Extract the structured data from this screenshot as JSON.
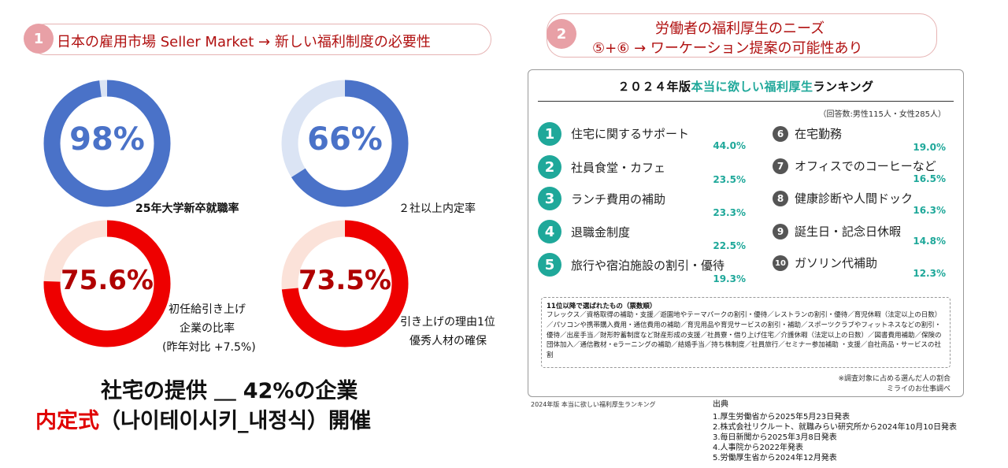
{
  "section1": {
    "number": "1",
    "title": "日本の雇用市場 Seller Market → 新しい福利制度の必要性"
  },
  "section2": {
    "number": "2",
    "title_line1": "労働者の福利厚生のニーズ",
    "title_line2": "⑤+⑥ → ワーケーション提案の可能性あり"
  },
  "chart_data": [
    {
      "type": "pie",
      "name": "donut-1",
      "value_pct": 98,
      "label": "98%",
      "caption": "25年大学新卒就職率",
      "fill_color": "#4a72c8",
      "rest_color": "#dbe4f4"
    },
    {
      "type": "pie",
      "name": "donut-2",
      "value_pct": 66,
      "label": "66%",
      "caption": "２社以上内定率",
      "fill_color": "#4a72c8",
      "rest_color": "#dbe4f4"
    },
    {
      "type": "pie",
      "name": "donut-3",
      "value_pct": 75.6,
      "label": "75.6%",
      "caption_lines": [
        "初任給引き上げ",
        "企業の比率",
        "(昨年対比 +7.5%)"
      ],
      "fill_color": "#ee0000",
      "rest_color": "#fbe2d9"
    },
    {
      "type": "pie",
      "name": "donut-4",
      "value_pct": 73.5,
      "label": "73.5%",
      "caption_lines": [
        "引き上げの理由1位",
        "優秀人材の確保"
      ],
      "fill_color": "#ee0000",
      "rest_color": "#fbe2d9"
    }
  ],
  "bottom": {
    "line1": "社宅の提供 ＿ 42%の企業",
    "line2_red": "内定式",
    "line2_rest": "（나이테이시키_내정식）開催"
  },
  "ranking": {
    "title_pre": "２０２４年版",
    "title_accent": "本当に欲しい福利厚生",
    "title_post": "ランキング",
    "respondents": "（回答数:男性115人・女性285人）",
    "top5": [
      {
        "rank": "1",
        "label": "住宅に関するサポート",
        "pct": "44.0%"
      },
      {
        "rank": "2",
        "label": "社員食堂・カフェ",
        "pct": "23.5%"
      },
      {
        "rank": "3",
        "label": "ランチ費用の補助",
        "pct": "23.3%"
      },
      {
        "rank": "4",
        "label": "退職金制度",
        "pct": "22.5%"
      },
      {
        "rank": "5",
        "label": "旅行や宿泊施設の割引・優待",
        "pct": "19.3%"
      }
    ],
    "next5": [
      {
        "rank": "6",
        "label": "在宅勤務",
        "pct": "19.0%"
      },
      {
        "rank": "7",
        "label": "オフィスでのコーヒーなど",
        "pct": "16.5%"
      },
      {
        "rank": "8",
        "label": "健康診断や人間ドック",
        "pct": "16.3%"
      },
      {
        "rank": "9",
        "label": "誕生日・記念日休暇",
        "pct": "14.8%"
      },
      {
        "rank": "10",
        "label": "ガソリン代補助",
        "pct": "12.3%"
      }
    ],
    "others_title": "11位以降で選ばれたもの（票数順）",
    "others_text": "フレックス／資格取得の補助・支援／遊園地やテーマパークの割引・優待／レストランの割引・優待／育児休暇（法定以上の日数）／パソコンや携帯購入費用・通信費用の補助／育児用品や育児サービスの割引・補助／スポーツクラブやフィットネスなどの割引・優待／出産手当／財形貯蓄制度など財産形成の支援／社員寮・借り上げ住宅／介護休暇（法定以上の日数）／図書費用補助／保険の団体加入／通信教材・eラーニングの補助／結婚手当／持ち株制度／社員旅行／セミナー参加補助 ・支援／自社商品・サービスの社割",
    "note1": "※調査対象に占める選んだ人の割合",
    "note2": "ミライのお仕事調べ"
  },
  "caption": "2024年版 本当に欲しい福利厚生ランキング",
  "sources": {
    "title": "出典",
    "items": [
      "1.厚生労働省から2025年5月23日発表",
      "2.株式会社リクルート、就職みらい研究所から2024年10月10日発表",
      "3.毎日新聞から2025年3月8日発表",
      "4.人事院から2022年発表",
      "5.労働厚生省から2024年12月発表"
    ]
  }
}
